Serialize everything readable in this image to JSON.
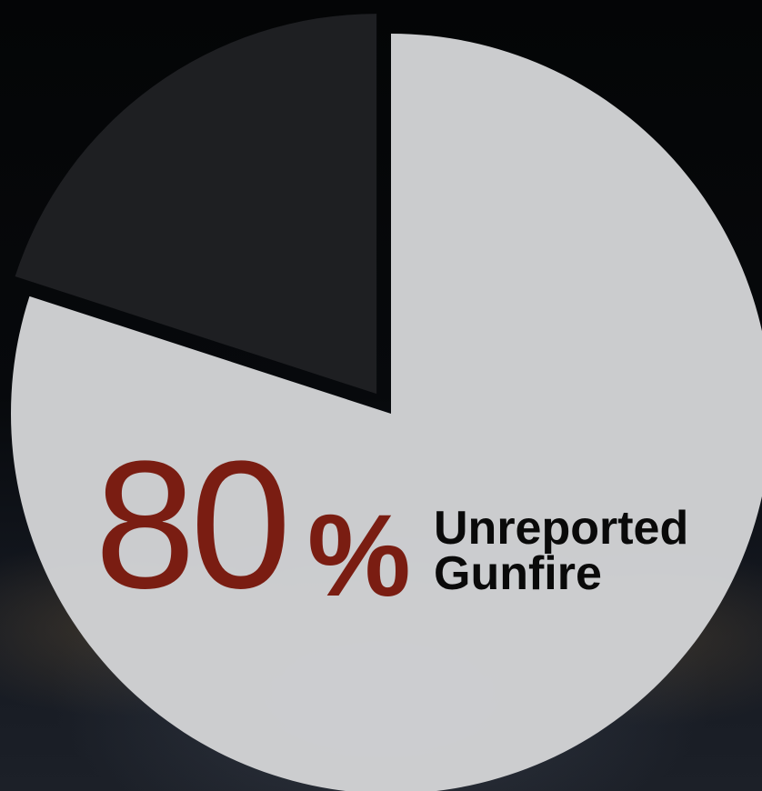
{
  "chart_data": {
    "type": "pie",
    "slices": [
      {
        "label": "Unreported Gunfire",
        "value": 80,
        "color": "#d2d3d5"
      },
      {
        "label": "",
        "value": 20,
        "color": "#1f2023",
        "exploded": true
      }
    ],
    "callout": {
      "value_text": "80",
      "unit_text": "%",
      "label_line1": "Unreported",
      "label_line2": "Gunfire",
      "value_color": "#7a1d12"
    }
  }
}
